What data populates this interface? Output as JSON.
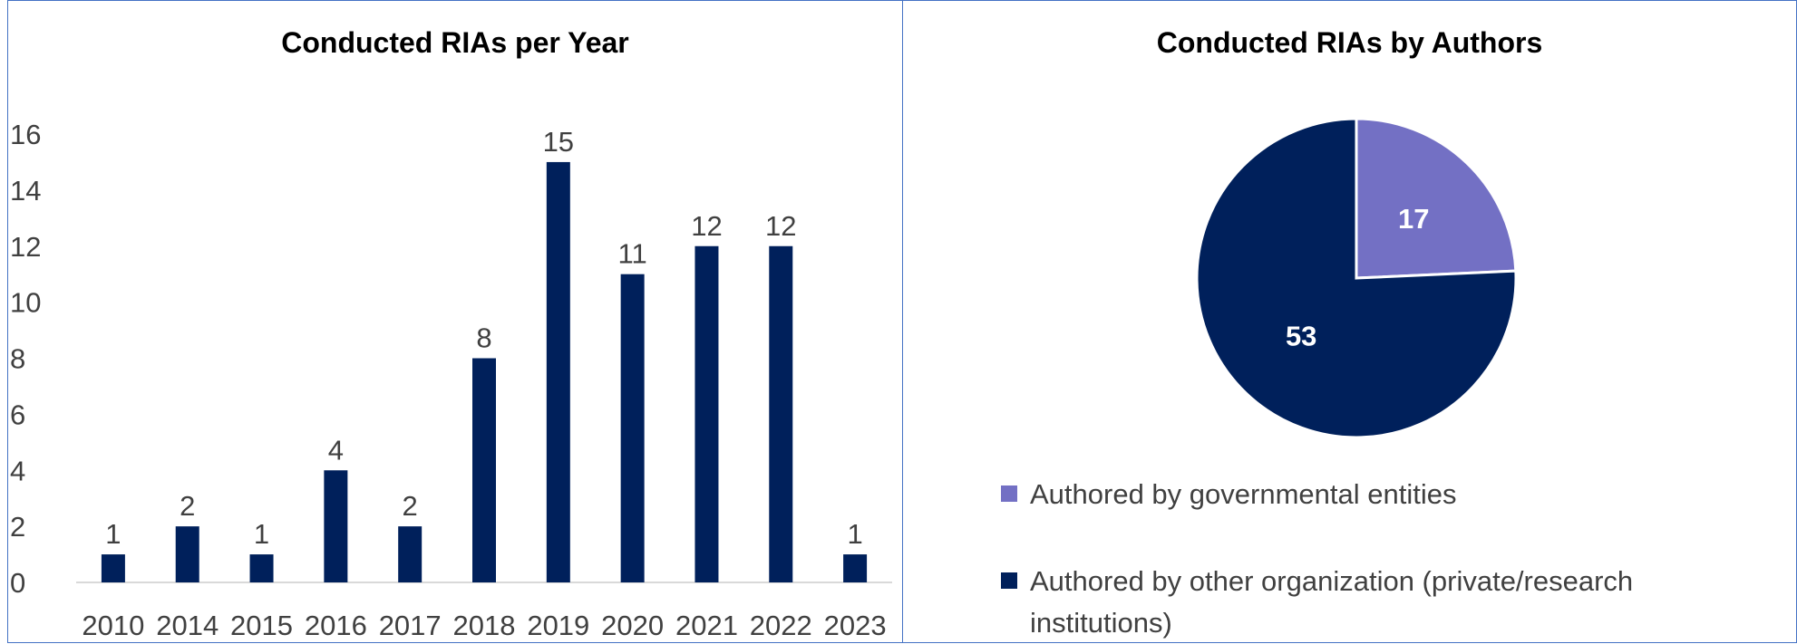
{
  "colors": {
    "bar": "#00205b",
    "governmental": "#7370c4",
    "other": "#00205b",
    "axis_text": "#404040",
    "border": "#4472c4"
  },
  "chart_data": [
    {
      "type": "bar",
      "title": "Conducted RIAs per Year",
      "categories": [
        "2010",
        "2014",
        "2015",
        "2016",
        "2017",
        "2018",
        "2019",
        "2020",
        "2021",
        "2022",
        "2023"
      ],
      "values": [
        1,
        2,
        1,
        4,
        2,
        8,
        15,
        11,
        12,
        12,
        1
      ],
      "yticks": [
        "0",
        "2",
        "4",
        "6",
        "8",
        "10",
        "12",
        "14",
        "16"
      ],
      "ylim": [
        0,
        16
      ],
      "xlabel": "",
      "ylabel": "",
      "grid": false,
      "legend": "none",
      "data_labels": true
    },
    {
      "type": "pie",
      "title": "Conducted RIAs by Authors",
      "labels": [
        "Authored by governmental entities",
        "Authored by other organization (private/research institutions)"
      ],
      "values": [
        17,
        53
      ],
      "data_labels": [
        "17",
        "53"
      ],
      "legend": "bottom"
    }
  ],
  "legend": {
    "item1_line1": "Authored by governmental entities",
    "item2_line1": "Authored by other organization (private/research",
    "item2_line2": "institutions)"
  }
}
